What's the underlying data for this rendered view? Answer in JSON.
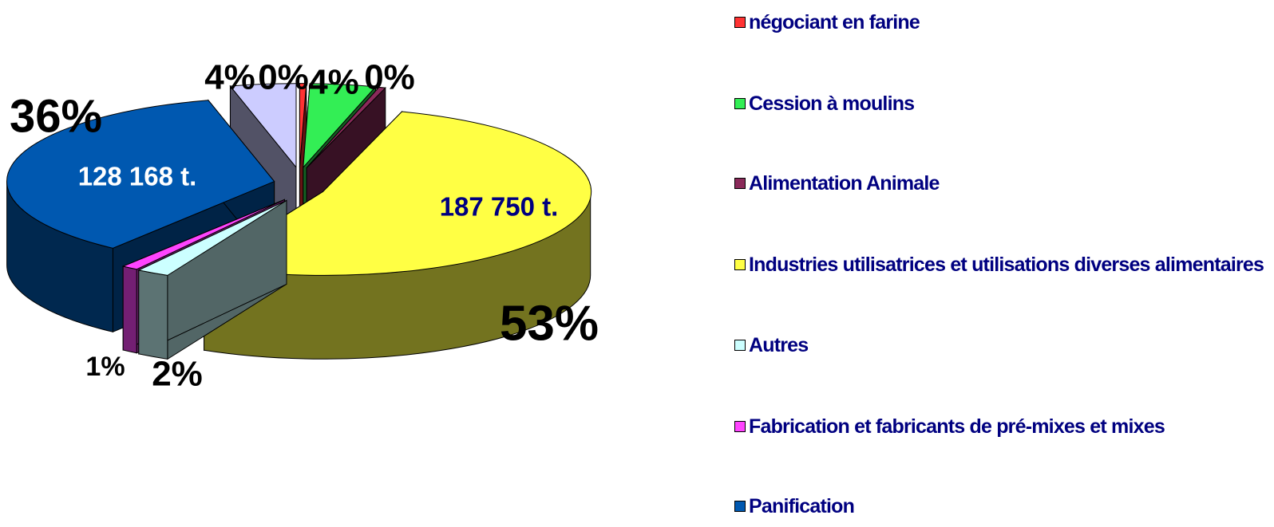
{
  "chart_data": {
    "type": "pie3d",
    "categories": [
      "négociant en farine",
      "Cession à moulins",
      "Alimentation Animale",
      "Industries utilisatrices et utilisations diverses alimentaires",
      "Autres",
      "Fabrication et fabricants de pré-mixes et mixes",
      "Panification",
      null
    ],
    "values": [
      0.4,
      4,
      0.4,
      53,
      2,
      1,
      36,
      4
    ],
    "value_labels": [
      "0%",
      "4%",
      "0%",
      "53%",
      "2%",
      "1%",
      "36%",
      "4%"
    ],
    "colors": [
      "#ff3333",
      "#33ee55",
      "#8a2a5a",
      "#ffff44",
      "#ccffff",
      "#ff44ff",
      "#0058b0",
      "#ccccff"
    ],
    "annotations": [
      "187 750 t.",
      "128 168 t."
    ],
    "legend": "right"
  }
}
